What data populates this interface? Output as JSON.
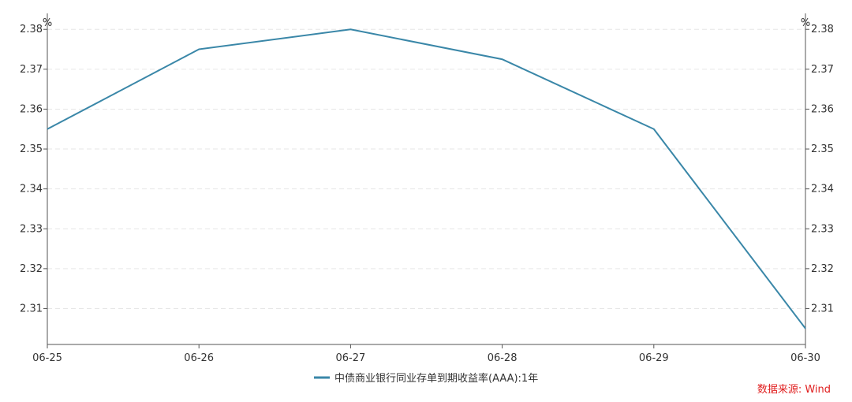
{
  "chart_data": {
    "type": "line",
    "x": [
      "06-25",
      "06-26",
      "06-27",
      "06-28",
      "06-29",
      "06-30"
    ],
    "series": [
      {
        "name": "中债商业银行同业存单到期收益率(AAA):1年",
        "values": [
          2.355,
          2.375,
          2.38,
          2.3725,
          2.355,
          2.305
        ],
        "color": "#3a87a8"
      }
    ],
    "ylim": [
      2.301,
      2.384
    ],
    "yticks": [
      "2.31",
      "2.32",
      "2.33",
      "2.34",
      "2.35",
      "2.36",
      "2.37",
      "2.38"
    ],
    "yunit_left": "%",
    "yunit_right": "%",
    "grid": true,
    "legend_position": "bottom-center"
  },
  "source": {
    "text": "数据来源: Wind",
    "color": "#e02020"
  }
}
